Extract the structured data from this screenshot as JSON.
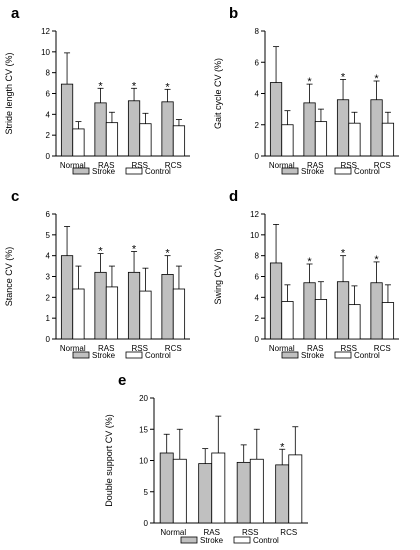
{
  "colors": {
    "stroke": "#c0c0c0",
    "control": "#ffffff",
    "axis": "#000000"
  },
  "legend": {
    "stroke_label": "Stroke",
    "control_label": "Control"
  },
  "chart_data": [
    {
      "type": "bar",
      "panel_label": "a",
      "categories": [
        "Normal",
        "RAS",
        "RSS",
        "RCS"
      ],
      "ylabel": "Stride length CV (%)",
      "xlabel": "",
      "ylim": [
        0,
        12
      ],
      "yticks": [
        0,
        2,
        4,
        6,
        8,
        10,
        12
      ],
      "series": [
        {
          "name": "Stroke",
          "values": [
            6.9,
            5.1,
            5.3,
            5.2
          ],
          "errors": [
            3.0,
            1.4,
            1.2,
            1.2
          ]
        },
        {
          "name": "Control",
          "values": [
            2.6,
            3.2,
            3.1,
            2.9
          ],
          "errors": [
            0.7,
            1.0,
            1.0,
            0.6
          ]
        }
      ],
      "significant": [
        false,
        true,
        true,
        true
      ],
      "significance_marker": "*"
    },
    {
      "type": "bar",
      "panel_label": "b",
      "categories": [
        "Normal",
        "RAS",
        "RSS",
        "RCS"
      ],
      "ylabel": "Gait cycle CV (%)",
      "xlabel": "",
      "ylim": [
        0,
        8
      ],
      "yticks": [
        0,
        2,
        4,
        6,
        8
      ],
      "series": [
        {
          "name": "Stroke",
          "values": [
            4.7,
            3.4,
            3.6,
            3.6
          ],
          "errors": [
            2.3,
            1.2,
            1.3,
            1.2
          ]
        },
        {
          "name": "Control",
          "values": [
            2.0,
            2.2,
            2.1,
            2.1
          ],
          "errors": [
            0.9,
            0.8,
            0.7,
            0.7
          ]
        }
      ],
      "significant": [
        false,
        true,
        true,
        true
      ],
      "significance_marker": "*"
    },
    {
      "type": "bar",
      "panel_label": "c",
      "categories": [
        "Normal",
        "RAS",
        "RSS",
        "RCS"
      ],
      "ylabel": "Stance CV (%)",
      "xlabel": "",
      "ylim": [
        0,
        6
      ],
      "yticks": [
        0,
        1,
        2,
        3,
        4,
        5,
        6
      ],
      "series": [
        {
          "name": "Stroke",
          "values": [
            4.0,
            3.2,
            3.2,
            3.1
          ],
          "errors": [
            1.4,
            0.9,
            1.0,
            0.9
          ]
        },
        {
          "name": "Control",
          "values": [
            2.4,
            2.5,
            2.3,
            2.4
          ],
          "errors": [
            1.1,
            1.0,
            1.1,
            1.1
          ]
        }
      ],
      "significant": [
        false,
        true,
        true,
        true
      ],
      "significance_marker": "*"
    },
    {
      "type": "bar",
      "panel_label": "d",
      "categories": [
        "Normal",
        "RAS",
        "RSS",
        "RCS"
      ],
      "ylabel": "Swing CV (%)",
      "xlabel": "",
      "ylim": [
        0,
        12
      ],
      "yticks": [
        0,
        2,
        4,
        6,
        8,
        10,
        12
      ],
      "series": [
        {
          "name": "Stroke",
          "values": [
            7.3,
            5.4,
            5.5,
            5.4
          ],
          "errors": [
            3.7,
            1.8,
            2.5,
            2.0
          ]
        },
        {
          "name": "Control",
          "values": [
            3.6,
            3.8,
            3.3,
            3.5
          ],
          "errors": [
            1.6,
            1.7,
            1.8,
            1.7
          ]
        }
      ],
      "significant": [
        false,
        true,
        true,
        true
      ],
      "significance_marker": "*"
    },
    {
      "type": "bar",
      "panel_label": "e",
      "categories": [
        "Normal",
        "RAS",
        "RSS",
        "RCS"
      ],
      "ylabel": "Double support CV (%)",
      "xlabel": "",
      "ylim": [
        0,
        20
      ],
      "yticks": [
        0,
        5,
        10,
        15,
        20
      ],
      "series": [
        {
          "name": "Stroke",
          "values": [
            11.2,
            9.5,
            9.7,
            9.3
          ],
          "errors": [
            3.0,
            2.4,
            2.8,
            2.5
          ]
        },
        {
          "name": "Control",
          "values": [
            10.2,
            11.2,
            10.2,
            10.9
          ],
          "errors": [
            4.8,
            5.9,
            4.8,
            4.5
          ]
        }
      ],
      "significant": [
        false,
        false,
        false,
        true
      ],
      "significance_marker": "*"
    }
  ]
}
